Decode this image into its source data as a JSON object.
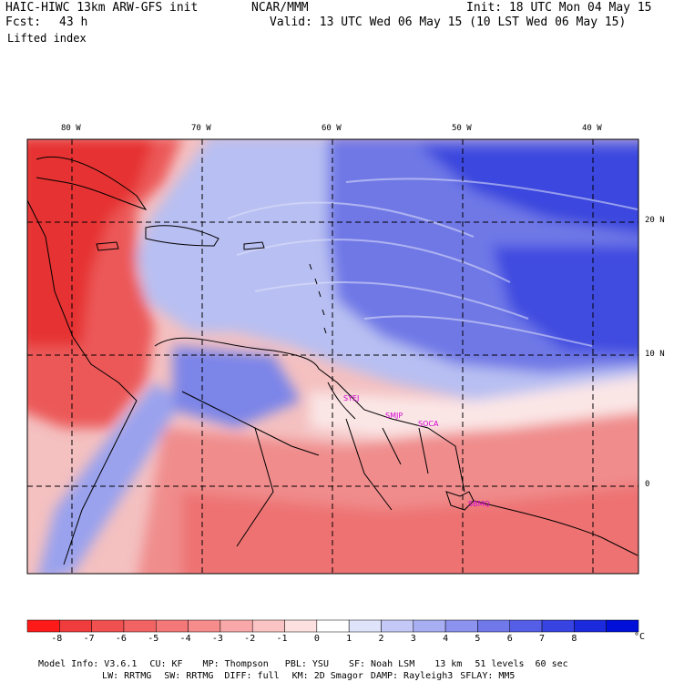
{
  "header": {
    "title": "HAIC-HIWC 13km ARW-GFS init",
    "org": "NCAR/MMM",
    "init": "Init: 18 UTC Mon 04 May 15",
    "fcst_label": "Fcst:",
    "fcst_value": "43 h",
    "valid": "Valid: 13 UTC Wed 06 May 15 (10 LST Wed 06 May 15)",
    "field": "Lifted index"
  },
  "map": {
    "lon_labels": [
      "80 W",
      "70 W",
      "60 W",
      "50 W",
      "40 W"
    ],
    "lat_labels": [
      "20 N",
      "10 N",
      "0"
    ],
    "stations": [
      "SYEJ",
      "SMJP",
      "SOCA",
      "SBMQ"
    ]
  },
  "colorbar": {
    "labels": [
      "-8",
      "-7",
      "-6",
      "-5",
      "-4",
      "-3",
      "-2",
      "-1",
      "0",
      "1",
      "2",
      "3",
      "4",
      "5",
      "6",
      "7",
      "8"
    ],
    "unit": "°C",
    "colors": [
      "#ff1a1a",
      "#f03c3c",
      "#f05050",
      "#f26464",
      "#f47878",
      "#f68c8c",
      "#f8a8a8",
      "#fac4c4",
      "#fde0e0",
      "#ffffff",
      "#e0e4fb",
      "#c4c8f6",
      "#a8aef2",
      "#8c93ee",
      "#7078ea",
      "#545ee6",
      "#3844e2",
      "#1c2ade",
      "#0010d8"
    ]
  },
  "footer": {
    "line1": [
      "Model Info: V3.6.1",
      "CU: KF",
      "MP: Thompson",
      "PBL: YSU",
      "SF: Noah LSM",
      "13 km",
      "51 levels",
      "60 sec"
    ],
    "line2": [
      "LW: RRTMG",
      "SW: RRTMG",
      "DIFF: full",
      "KM: 2D Smagor",
      "DAMP: Rayleigh3",
      "SFLAY: MM5"
    ]
  }
}
